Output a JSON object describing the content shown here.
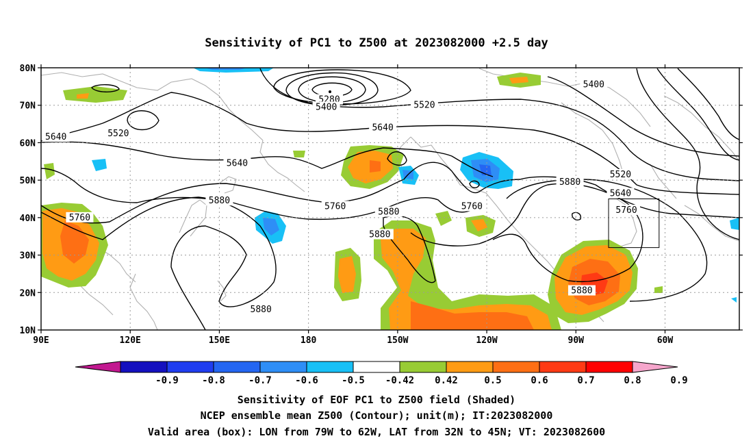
{
  "title": "Sensitivity of PC1 to Z500 at 2023082000 +2.5 day",
  "lat_labels": [
    "80N",
    "70N",
    "60N",
    "50N",
    "40N",
    "30N",
    "20N",
    "10N"
  ],
  "lon_labels": [
    "90E",
    "120E",
    "150E",
    "180",
    "150W",
    "120W",
    "90W",
    "60W"
  ],
  "lat_values": [
    80,
    70,
    60,
    50,
    40,
    30,
    20,
    10
  ],
  "lon_values": [
    90,
    120,
    150,
    180,
    210,
    240,
    270,
    300
  ],
  "contour_labels": [
    {
      "text": "5280",
      "lon": 187,
      "lat": 71.5
    },
    {
      "text": "5400",
      "lon": 186,
      "lat": 69.5
    },
    {
      "text": "5400",
      "lon": 276,
      "lat": 75.5
    },
    {
      "text": "5520",
      "lon": 219,
      "lat": 70
    },
    {
      "text": "5520",
      "lon": 116,
      "lat": 62.5
    },
    {
      "text": "5520",
      "lon": 285,
      "lat": 51.5
    },
    {
      "text": "5640",
      "lon": 95,
      "lat": 61.5
    },
    {
      "text": "5640",
      "lon": 205,
      "lat": 64
    },
    {
      "text": "5640",
      "lon": 156,
      "lat": 54.5
    },
    {
      "text": "5640",
      "lon": 285,
      "lat": 46.5
    },
    {
      "text": "5760",
      "lon": 103,
      "lat": 40
    },
    {
      "text": "5760",
      "lon": 189,
      "lat": 43
    },
    {
      "text": "5760",
      "lon": 235,
      "lat": 43
    },
    {
      "text": "5760",
      "lon": 287,
      "lat": 42
    },
    {
      "text": "5880",
      "lon": 150,
      "lat": 44.5
    },
    {
      "text": "5880",
      "lon": 207,
      "lat": 41.5
    },
    {
      "text": "5880",
      "lon": 204,
      "lat": 35.5
    },
    {
      "text": "5880",
      "lon": 268,
      "lat": 49.5
    },
    {
      "text": "5880",
      "lon": 164,
      "lat": 15.5
    },
    {
      "text": "5880",
      "lon": 272,
      "lat": 20.5
    }
  ],
  "valid_box": {
    "lon_min": 281,
    "lon_max": 298,
    "lat_min": 32,
    "lat_max": 45
  },
  "colorbar": {
    "labels": [
      "-0.9",
      "-0.8",
      "-0.7",
      "-0.6",
      "-0.5",
      "-0.42",
      "0.42",
      "0.5",
      "0.6",
      "0.7",
      "0.8",
      "0.9"
    ],
    "colors": [
      "#c21890",
      "#1410bf",
      "#1f3df0",
      "#2466f2",
      "#2e8ef6",
      "#18c0f6",
      "#ffffff",
      "#98cc34",
      "#ff9b14",
      "#fe6f14",
      "#ff3a14",
      "#ff0000",
      "#f6a6cc"
    ]
  },
  "caption": {
    "line1": "Sensitivity of EOF PC1 to Z500 field (Shaded)",
    "line2": "NCEP ensemble mean Z500 (Contour); unit(m); IT:2023082000",
    "line3": "Valid area (box): LON from 79W to 62W, LAT from 32N to 45N; VT: 2023082600"
  }
}
